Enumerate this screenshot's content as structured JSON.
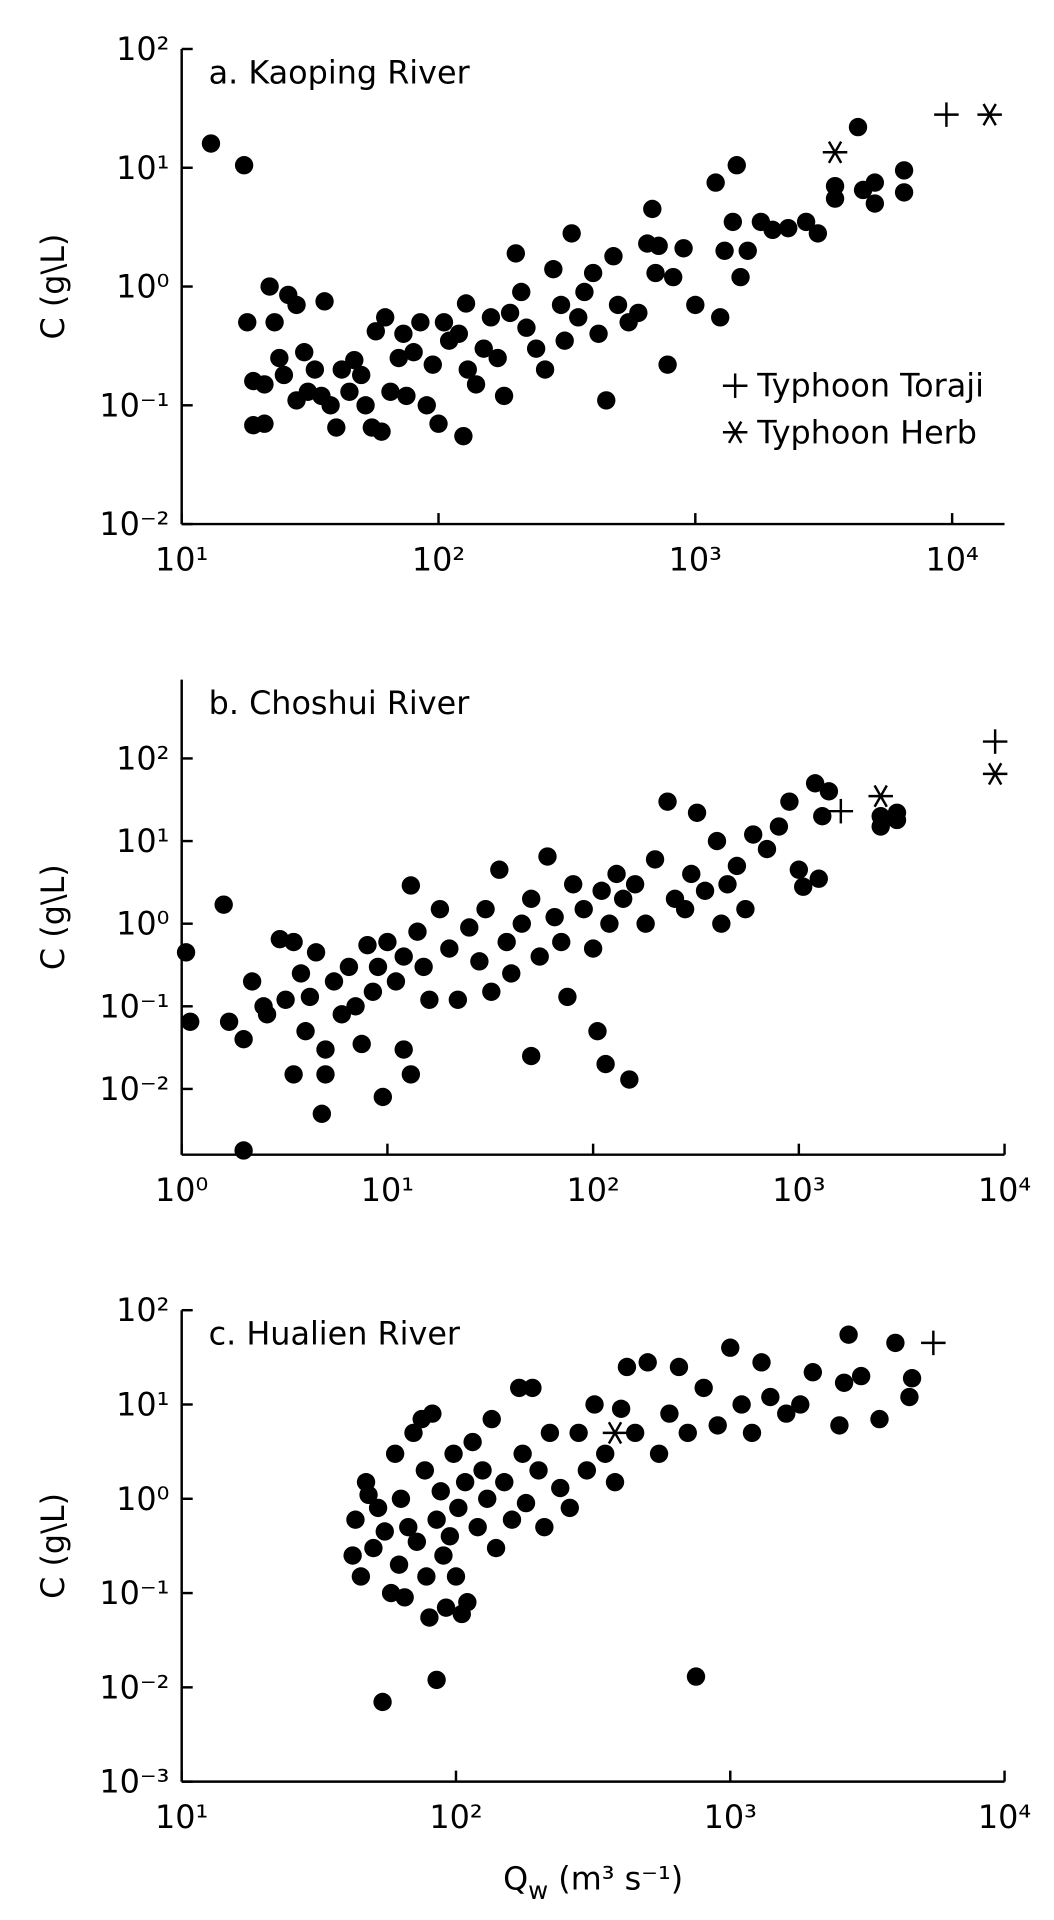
{
  "chart_data": [
    {
      "type": "scatter",
      "title": "a. Kaoping River",
      "ylabel": "C (g\\L)",
      "log_x": true,
      "log_y": true,
      "xlim": [
        10,
        16000
      ],
      "ylim": [
        0.01,
        100
      ],
      "xticks": [
        {
          "value": 10,
          "label": "10¹"
        },
        {
          "value": 100,
          "label": "10²"
        },
        {
          "value": 1000,
          "label": "10³"
        },
        {
          "value": 10000,
          "label": "10⁴"
        }
      ],
      "yticks": [
        {
          "value": 0.01,
          "label": "10⁻²"
        },
        {
          "value": 0.1,
          "label": "10⁻¹"
        },
        {
          "value": 1,
          "label": "10⁰"
        },
        {
          "value": 10,
          "label": "10¹"
        },
        {
          "value": 100,
          "label": "10²"
        }
      ],
      "legend": "lower right",
      "series": [
        {
          "marker": "dot",
          "color": "#000000",
          "x": [
            13,
            17.5,
            18,
            19,
            19,
            21,
            21,
            22,
            23,
            24,
            25,
            26,
            28,
            28,
            30,
            31,
            33,
            35,
            36,
            38,
            40,
            42,
            45,
            47,
            50,
            52,
            55,
            57,
            60,
            62,
            65,
            70,
            73,
            75,
            80,
            85,
            90,
            95,
            100,
            105,
            110,
            120,
            125,
            128,
            130,
            140,
            150,
            160,
            170,
            180,
            190,
            200,
            210,
            220,
            240,
            260,
            280,
            300,
            310,
            330,
            350,
            370,
            400,
            420,
            450,
            480,
            500,
            550,
            600,
            650,
            680,
            700,
            720,
            780,
            820,
            900,
            1000,
            1200,
            1250,
            1300,
            1400,
            1450,
            1500,
            1600,
            1800,
            2000,
            2300,
            2700,
            3000,
            3500,
            3500,
            4300,
            4500,
            5000,
            5000,
            6500,
            6500
          ],
          "values": [
            16,
            10.5,
            0.5,
            0.16,
            0.068,
            0.07,
            0.15,
            1.0,
            0.5,
            0.25,
            0.18,
            0.85,
            0.7,
            0.11,
            0.28,
            0.13,
            0.2,
            0.12,
            0.75,
            0.1,
            0.065,
            0.2,
            0.13,
            0.24,
            0.18,
            0.1,
            0.065,
            0.42,
            0.06,
            0.55,
            0.13,
            0.25,
            0.4,
            0.12,
            0.28,
            0.5,
            0.1,
            0.22,
            0.07,
            0.5,
            0.35,
            0.4,
            0.055,
            0.72,
            0.2,
            0.15,
            0.3,
            0.55,
            0.25,
            0.12,
            0.6,
            1.9,
            0.9,
            0.45,
            0.3,
            0.2,
            1.4,
            0.7,
            0.35,
            2.8,
            0.55,
            0.9,
            1.3,
            0.4,
            0.11,
            1.8,
            0.7,
            0.5,
            0.6,
            2.3,
            4.5,
            1.3,
            2.2,
            0.22,
            1.2,
            2.1,
            0.7,
            7.5,
            0.55,
            2,
            3.5,
            10.5,
            1.2,
            2,
            3.5,
            3,
            3.1,
            3.5,
            2.8,
            7,
            5.5,
            22,
            6.5,
            5,
            7.5,
            9.5,
            6.2
          ]
        },
        {
          "name": "Typhoon Toraji",
          "marker": "plus",
          "color": "#000000",
          "x": [
            9500
          ],
          "values": [
            28
          ]
        },
        {
          "name": "Typhoon Herb",
          "marker": "star",
          "color": "#000000",
          "x": [
            14000,
            3500
          ],
          "values": [
            28,
            13.5
          ]
        }
      ]
    },
    {
      "type": "scatter",
      "title": "b. Choshui River",
      "ylabel": "C (g\\L)",
      "log_x": true,
      "log_y": true,
      "xlim": [
        1,
        10000
      ],
      "ylim": [
        0.0016,
        900
      ],
      "xticks": [
        {
          "value": 1,
          "label": "10⁰"
        },
        {
          "value": 10,
          "label": "10¹"
        },
        {
          "value": 100,
          "label": "10²"
        },
        {
          "value": 1000,
          "label": "10³"
        },
        {
          "value": 10000,
          "label": "10⁴"
        }
      ],
      "yticks": [
        {
          "value": 0.01,
          "label": "10⁻²"
        },
        {
          "value": 0.1,
          "label": "10⁻¹"
        },
        {
          "value": 1,
          "label": "10⁰"
        },
        {
          "value": 10,
          "label": "10¹"
        },
        {
          "value": 100,
          "label": "10²"
        }
      ],
      "series": [
        {
          "marker": "dot",
          "color": "#000000",
          "x": [
            1.05,
            1.1,
            1.6,
            1.7,
            2,
            2,
            2.2,
            2.5,
            2.6,
            3,
            3.2,
            3.5,
            3.5,
            3.8,
            4,
            4.2,
            4.5,
            4.8,
            5,
            5,
            5.5,
            6,
            6.5,
            7,
            7.5,
            8,
            8.5,
            9,
            9.5,
            10,
            11,
            12,
            12,
            13,
            13,
            14,
            15,
            16,
            18,
            20,
            22,
            25,
            28,
            30,
            32,
            35,
            38,
            40,
            45,
            50,
            50,
            55,
            60,
            65,
            70,
            75,
            80,
            90,
            100,
            105,
            110,
            115,
            120,
            130,
            140,
            150,
            160,
            180,
            200,
            230,
            250,
            280,
            300,
            320,
            350,
            400,
            420,
            450,
            500,
            550,
            600,
            700,
            800,
            900,
            1000,
            1050,
            1200,
            1250,
            1300,
            1400,
            2500,
            2500,
            3000,
            3000
          ],
          "values": [
            0.45,
            0.065,
            1.7,
            0.065,
            0.0018,
            0.04,
            0.2,
            0.1,
            0.08,
            0.65,
            0.12,
            0.015,
            0.6,
            0.25,
            0.05,
            0.13,
            0.45,
            0.005,
            0.015,
            0.03,
            0.2,
            0.08,
            0.3,
            0.1,
            0.035,
            0.55,
            0.15,
            0.3,
            0.008,
            0.6,
            0.2,
            0.4,
            0.03,
            0.015,
            2.9,
            0.8,
            0.3,
            0.12,
            1.5,
            0.5,
            0.12,
            0.9,
            0.35,
            1.5,
            0.15,
            4.5,
            0.6,
            0.25,
            1,
            0.025,
            2,
            0.4,
            6.5,
            1.2,
            0.6,
            0.13,
            3,
            1.5,
            0.5,
            0.05,
            2.5,
            0.02,
            1,
            4,
            2,
            0.013,
            3,
            1,
            6,
            30,
            2,
            1.5,
            4,
            22,
            2.5,
            10,
            1,
            3,
            5,
            1.5,
            12,
            8,
            15,
            30,
            4.5,
            2.8,
            50,
            3.5,
            20,
            40,
            20,
            15,
            22,
            18
          ]
        },
        {
          "marker": "plus",
          "color": "#000000",
          "x": [
            9000,
            1600
          ],
          "values": [
            160,
            23
          ]
        },
        {
          "marker": "star",
          "color": "#000000",
          "x": [
            9000,
            2500
          ],
          "values": [
            65,
            35
          ]
        }
      ]
    },
    {
      "type": "scatter",
      "title": "c. Hualien River",
      "ylabel": "C (g\\L)",
      "xlabel": [
        "Q",
        "w",
        " (m³ s⁻¹)"
      ],
      "log_x": true,
      "log_y": true,
      "xlim": [
        10,
        10000
      ],
      "ylim": [
        0.001,
        100
      ],
      "xticks": [
        {
          "value": 10,
          "label": "10¹"
        },
        {
          "value": 100,
          "label": "10²"
        },
        {
          "value": 1000,
          "label": "10³"
        },
        {
          "value": 10000,
          "label": "10⁴"
        }
      ],
      "yticks": [
        {
          "value": 0.001,
          "label": "10⁻³"
        },
        {
          "value": 0.01,
          "label": "10⁻²"
        },
        {
          "value": 0.1,
          "label": "10⁻¹"
        },
        {
          "value": 1,
          "label": "10⁰"
        },
        {
          "value": 10,
          "label": "10¹"
        },
        {
          "value": 100,
          "label": "10²"
        }
      ],
      "series": [
        {
          "marker": "dot",
          "color": "#000000",
          "x": [
            42,
            43,
            45,
            47,
            48,
            50,
            52,
            54,
            55,
            58,
            60,
            62,
            63,
            65,
            67,
            70,
            72,
            75,
            77,
            78,
            80,
            82,
            85,
            85,
            88,
            90,
            92,
            95,
            98,
            100,
            102,
            105,
            108,
            110,
            115,
            120,
            125,
            130,
            135,
            140,
            150,
            160,
            170,
            175,
            180,
            190,
            200,
            210,
            220,
            240,
            260,
            280,
            300,
            320,
            350,
            380,
            400,
            420,
            450,
            500,
            550,
            600,
            650,
            700,
            750,
            800,
            900,
            1000,
            1100,
            1200,
            1300,
            1400,
            1600,
            1800,
            2000,
            2500,
            2600,
            2700,
            3000,
            3500,
            4000,
            4500,
            4600
          ],
          "values": [
            0.25,
            0.6,
            0.15,
            1.5,
            1.1,
            0.3,
            0.8,
            0.007,
            0.45,
            0.1,
            3,
            0.2,
            1,
            0.09,
            0.5,
            5,
            0.35,
            7,
            2,
            0.15,
            0.055,
            8,
            0.012,
            0.6,
            1.2,
            0.25,
            0.07,
            0.4,
            3,
            0.15,
            0.8,
            0.06,
            1.5,
            0.08,
            4,
            0.5,
            2,
            1,
            7,
            0.3,
            1.5,
            0.6,
            15,
            3,
            0.9,
            15,
            2,
            0.5,
            5,
            1.3,
            0.8,
            5,
            2,
            10,
            3,
            1.5,
            9,
            25,
            5,
            28,
            3,
            8,
            25,
            5,
            0.013,
            15,
            6,
            40,
            10,
            5,
            28,
            12,
            8,
            10,
            22,
            6,
            17,
            55,
            20,
            7,
            45,
            12,
            19
          ]
        },
        {
          "marker": "plus",
          "color": "#000000",
          "x": [
            5500
          ],
          "values": [
            45
          ]
        },
        {
          "marker": "star",
          "color": "#000000",
          "x": [
            380
          ],
          "values": [
            5
          ]
        }
      ]
    }
  ]
}
